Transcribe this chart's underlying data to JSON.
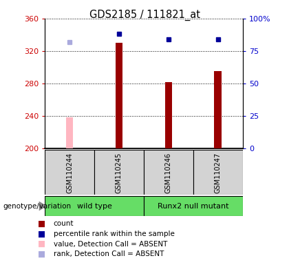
{
  "title": "GDS2185 / 111821_at",
  "samples": [
    "GSM110244",
    "GSM110245",
    "GSM110246",
    "GSM110247"
  ],
  "bar_values": [
    null,
    330,
    282,
    295
  ],
  "bar_absent_values": [
    238,
    null,
    null,
    null
  ],
  "percentile_values": [
    null,
    88,
    84,
    84
  ],
  "percentile_absent_values": [
    82,
    null,
    null,
    null
  ],
  "ylim_left": [
    200,
    360
  ],
  "ylim_right": [
    0,
    100
  ],
  "yticks_left": [
    200,
    240,
    280,
    320,
    360
  ],
  "yticks_right": [
    0,
    25,
    50,
    75,
    100
  ],
  "bar_color": "#990000",
  "bar_absent_color": "#ffb6c1",
  "percentile_color": "#000099",
  "percentile_absent_color": "#aaaadd",
  "label_color_left": "#cc0000",
  "label_color_right": "#0000cc",
  "group_wt": "wild type",
  "group_rm": "Runx2 null mutant",
  "group_label": "genotype/variation",
  "legend": [
    {
      "label": "count",
      "color": "#990000"
    },
    {
      "label": "percentile rank within the sample",
      "color": "#000099"
    },
    {
      "label": "value, Detection Call = ABSENT",
      "color": "#ffb6c1"
    },
    {
      "label": "rank, Detection Call = ABSENT",
      "color": "#aaaadd"
    }
  ]
}
